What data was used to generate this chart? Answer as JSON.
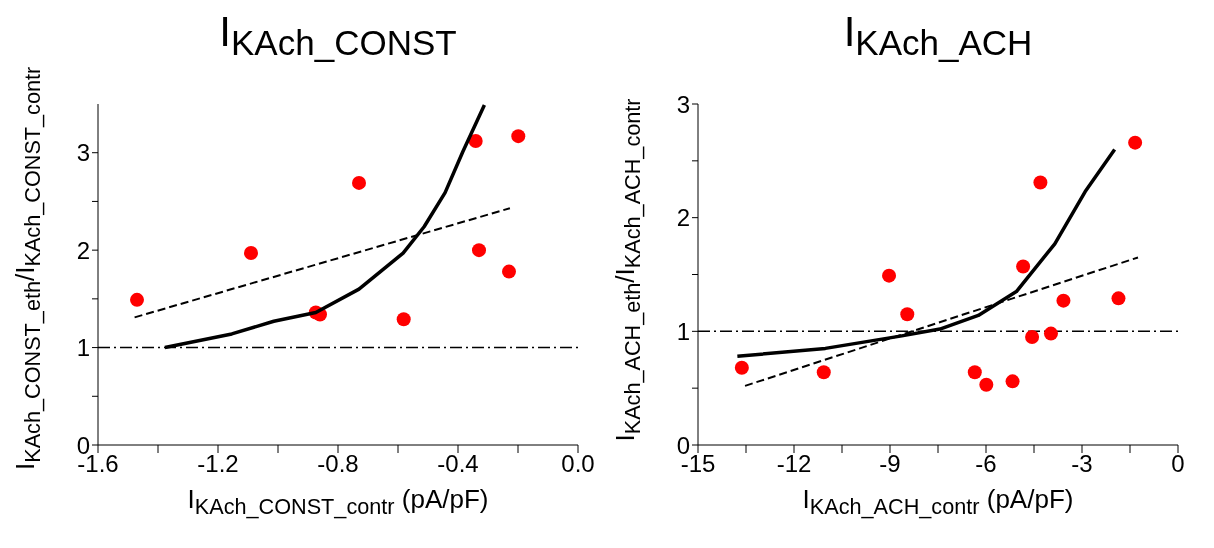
{
  "chart_data": [
    {
      "type": "scatter",
      "title": "I$_{KAch_CONST}$",
      "xlabel": "I$_{KAch_CONST_contr}$  (pA/pF)",
      "ylabel": "I$_{KAch_CONST_eth}$/I$_{KAch_CONST_contr}$",
      "xlim": [
        -1.6,
        0
      ],
      "ylim": [
        0,
        3.5
      ],
      "xticks": [
        -1.6,
        {
          "value": -1.4,
          "label": null
        },
        -1.2,
        {
          "value": -1.0,
          "label": null
        },
        -0.8,
        {
          "value": -0.6,
          "label": null
        },
        -0.4,
        {
          "value": -0.2,
          "label": null
        },
        {
          "value": 0,
          "label": "0.0"
        }
      ],
      "yticks": [
        0,
        {
          "value": 0.5,
          "label": null
        },
        1,
        {
          "value": 1.5,
          "label": null
        },
        2,
        {
          "value": 2.5,
          "label": null
        },
        3
      ],
      "grid": false,
      "legend": false,
      "marker": "circle",
      "series": [
        {
          "color": "#ff0000",
          "x": [
            -1.47,
            -1.09,
            -0.73,
            -0.874,
            -0.86,
            -0.581,
            -0.341,
            -0.33,
            -0.23,
            -0.199
          ],
          "values": [
            1.49,
            1.97,
            2.69,
            1.36,
            1.34,
            1.29,
            3.12,
            2.0,
            1.78,
            3.17
          ]
        },
        {
          "type": "line",
          "color": "#000000",
          "line_style": "solid",
          "marker": "none",
          "x": [
            -1.377,
            -1.154,
            -1.014,
            -0.874,
            -0.73,
            -0.583,
            -0.513,
            -0.443,
            -0.384,
            -0.312
          ],
          "values": [
            1.0,
            1.14,
            1.27,
            1.36,
            1.6,
            1.97,
            2.24,
            2.59,
            3.01,
            3.49
          ]
        },
        {
          "type": "line",
          "color": "#000000",
          "line_style": "dashed",
          "marker": "none",
          "x": [
            -1.478,
            -0.227
          ],
          "values": [
            1.31,
            2.43
          ]
        }
      ],
      "ref_lines": [
        {
          "axis": "y",
          "value": 1,
          "color": "#000000",
          "line_style": "dashdot"
        }
      ]
    },
    {
      "type": "scatter",
      "title": "I$_{KAch_ACH}$",
      "xlabel": "I$_{KAch_ACH_contr}$  (pA/pF)",
      "ylabel": "I$_{KAch_ACH_eth}$/I$_{KAch_ACH_contr}$",
      "xlim": [
        -15,
        0
      ],
      "ylim": [
        0,
        3
      ],
      "xticks": [
        -15,
        {
          "value": -13.5,
          "label": null
        },
        -12,
        {
          "value": -10.5,
          "label": null
        },
        -9,
        {
          "value": -7.5,
          "label": null
        },
        -6,
        {
          "value": -4.5,
          "label": null
        },
        -3,
        {
          "value": -1.5,
          "label": null
        },
        0
      ],
      "yticks": [
        0,
        {
          "value": 0.5,
          "label": null
        },
        1,
        {
          "value": 1.5,
          "label": null
        },
        2,
        {
          "value": 2.5,
          "label": null
        },
        3
      ],
      "grid": false,
      "legend": false,
      "marker": "circle",
      "series": [
        {
          "color": "#ff0000",
          "x": [
            -13.63,
            -11.07,
            -9.03,
            -8.46,
            -6.35,
            -5.99,
            -5.17,
            -4.84,
            -4.56,
            -4.3,
            -3.97,
            -3.58,
            -1.86,
            -1.34
          ],
          "values": [
            0.68,
            0.64,
            1.49,
            1.15,
            0.64,
            0.53,
            0.56,
            1.57,
            0.95,
            2.31,
            0.98,
            1.27,
            1.29,
            2.66
          ]
        },
        {
          "type": "line",
          "color": "#000000",
          "line_style": "solid",
          "marker": "none",
          "x": [
            -13.77,
            -11.02,
            -8.63,
            -7.44,
            -6.24,
            -5.05,
            -3.85,
            -2.9,
            -1.98
          ],
          "values": [
            0.78,
            0.85,
            0.96,
            1.02,
            1.14,
            1.35,
            1.77,
            2.23,
            2.6
          ]
        },
        {
          "type": "line",
          "color": "#000000",
          "line_style": "dashed",
          "marker": "none",
          "x": [
            -13.53,
            -1.25
          ],
          "values": [
            0.52,
            1.65
          ]
        }
      ],
      "ref_lines": [
        {
          "axis": "y",
          "value": 1,
          "color": "#000000",
          "line_style": "dashdot"
        }
      ]
    }
  ]
}
